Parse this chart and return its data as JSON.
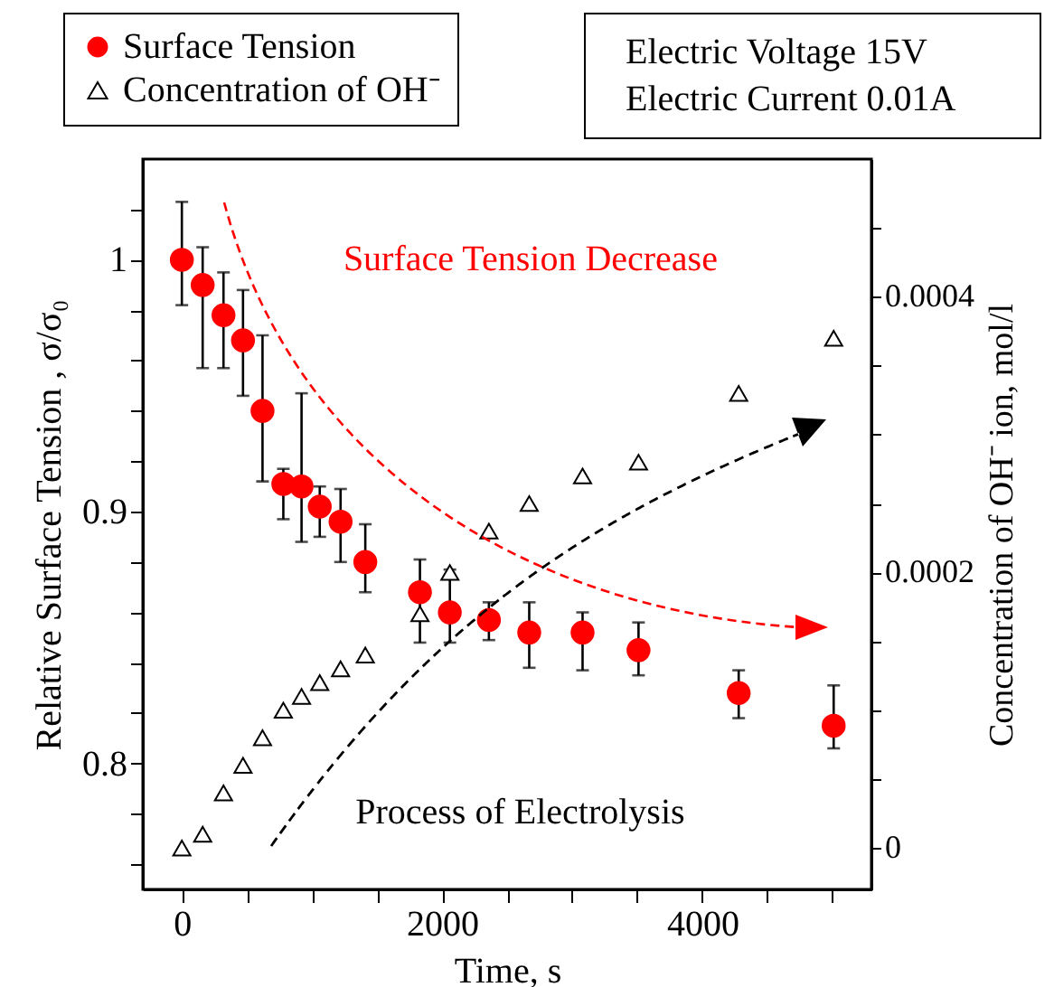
{
  "chart_data": {
    "type": "scatter",
    "xlabel": "Time, s",
    "ylabel": "Relative Surface Tension , σ/σ₀",
    "y2label": "Concentration of OH⁻ ion, mol/l",
    "annotations": [
      "Surface Tension Decrease",
      "Process of Electrolysis",
      "Electric Voltage 15V",
      "Electric Current 0.01A"
    ],
    "x": [
      0,
      160,
      320,
      470,
      620,
      780,
      920,
      1060,
      1220,
      1410,
      1830,
      2060,
      2360,
      2670,
      3080,
      3510,
      4280,
      5010
    ],
    "series": [
      {
        "name": "Surface Tension",
        "color": "#ff0000",
        "marker": "circle",
        "values": [
          1.0,
          0.99,
          0.978,
          0.968,
          0.94,
          0.911,
          0.91,
          0.902,
          0.896,
          0.88,
          0.868,
          0.86,
          0.857,
          0.852,
          0.852,
          0.845,
          0.828,
          0.815
        ],
        "errors": [
          [
            0.982,
            1.023
          ],
          [
            0.957,
            1.005
          ],
          [
            0.957,
            0.995
          ],
          [
            0.946,
            0.988
          ],
          [
            0.912,
            0.97
          ],
          [
            0.897,
            0.917
          ],
          [
            0.888,
            0.947
          ],
          [
            0.89,
            0.91
          ],
          [
            0.88,
            0.909
          ],
          [
            0.868,
            0.895
          ],
          [
            0.848,
            0.881
          ],
          [
            0.848,
            0.877
          ],
          [
            0.849,
            0.864
          ],
          [
            0.838,
            0.864
          ],
          [
            0.837,
            0.86
          ],
          [
            0.835,
            0.856
          ],
          [
            0.818,
            0.837
          ],
          [
            0.806,
            0.831
          ]
        ]
      },
      {
        "name": "Concentration of OH⁻",
        "color": "#000000",
        "marker": "triangle",
        "axis": "y2",
        "values": [
          0.0,
          1e-05,
          4e-05,
          6e-05,
          8e-05,
          0.0001,
          0.00011,
          0.00012,
          0.00013,
          0.00014,
          0.00017,
          0.0002,
          0.00023,
          0.00025,
          0.00027,
          0.00028,
          0.00033,
          0.00037
        ]
      }
    ],
    "xlim": [
      -300,
      5300
    ],
    "xticks": [
      0,
      {
        "value": 500,
        "label": null
      },
      {
        "value": 1000,
        "label": null
      },
      {
        "value": 1500,
        "label": null
      },
      2000,
      {
        "value": 2500,
        "label": null
      },
      {
        "value": 3000,
        "label": null
      },
      {
        "value": 3500,
        "label": null
      },
      4000,
      {
        "value": 4500,
        "label": null
      },
      {
        "value": 5000,
        "label": null
      }
    ],
    "ylim": [
      0.75,
      1.04
    ],
    "yticks": [
      {
        "value": 0.76,
        "label": null
      },
      {
        "value": 0.78,
        "label": null
      },
      0.8,
      {
        "value": 0.82,
        "label": null
      },
      {
        "value": 0.84,
        "label": null
      },
      {
        "value": 0.86,
        "label": null
      },
      {
        "value": 0.88,
        "label": null
      },
      0.9,
      {
        "value": 0.92,
        "label": null
      },
      {
        "value": 0.94,
        "label": null
      },
      {
        "value": 0.96,
        "label": null
      },
      {
        "value": 0.98,
        "label": null
      },
      1,
      {
        "value": 1.02,
        "label": null
      }
    ],
    "y2lim": [
      -3e-05,
      0.0005
    ],
    "y2ticks": [
      0,
      {
        "value": 5e-05,
        "label": null
      },
      {
        "value": 0.0001,
        "label": null
      },
      {
        "value": 0.00015,
        "label": null
      },
      0.0002,
      {
        "value": 0.00025,
        "label": null
      },
      {
        "value": 0.0003,
        "label": null
      },
      {
        "value": 0.00035,
        "label": null
      },
      0.0004,
      {
        "value": 0.00045,
        "label": null
      }
    ],
    "grid": false,
    "legend": "top left"
  }
}
